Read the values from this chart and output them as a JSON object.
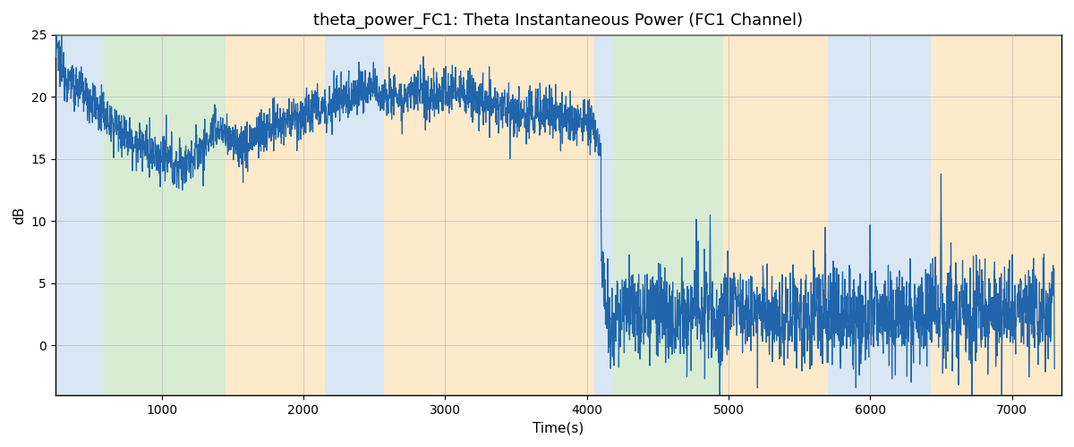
{
  "title": "theta_power_FC1: Theta Instantaneous Power (FC1 Channel)",
  "xlabel": "Time(s)",
  "ylabel": "dB",
  "ylim": [
    -4,
    25
  ],
  "xlim": [
    250,
    7350
  ],
  "xticks": [
    1000,
    2000,
    3000,
    4000,
    5000,
    6000,
    7000
  ],
  "yticks": [
    0,
    5,
    10,
    15,
    20,
    25
  ],
  "figsize": [
    12,
    5
  ],
  "dpi": 100,
  "background_color": "#ffffff",
  "line_color": "#2166ac",
  "line_width": 0.9,
  "grid_color": "#b0b0b0",
  "bands": [
    {
      "xmin": 250,
      "xmax": 590,
      "color": "#b8d4ea",
      "alpha": 0.55
    },
    {
      "xmin": 590,
      "xmax": 1450,
      "color": "#b8ddb0",
      "alpha": 0.55
    },
    {
      "xmin": 1450,
      "xmax": 2150,
      "color": "#fdd9a0",
      "alpha": 0.55
    },
    {
      "xmin": 2150,
      "xmax": 2570,
      "color": "#b8d4ea",
      "alpha": 0.55
    },
    {
      "xmin": 2570,
      "xmax": 4050,
      "color": "#fdd9a0",
      "alpha": 0.55
    },
    {
      "xmin": 4050,
      "xmax": 4190,
      "color": "#b8d4ea",
      "alpha": 0.55
    },
    {
      "xmin": 4190,
      "xmax": 4960,
      "color": "#b8ddb0",
      "alpha": 0.55
    },
    {
      "xmin": 4960,
      "xmax": 5700,
      "color": "#fdd9a0",
      "alpha": 0.55
    },
    {
      "xmin": 5700,
      "xmax": 6430,
      "color": "#b8d4ea",
      "alpha": 0.55
    },
    {
      "xmin": 6430,
      "xmax": 7350,
      "color": "#fdd9a0",
      "alpha": 0.55
    }
  ],
  "seed": 12345,
  "trend1": [
    [
      250,
      24.2
    ],
    [
      300,
      22.0
    ],
    [
      380,
      21.0
    ],
    [
      450,
      20.5
    ],
    [
      520,
      19.5
    ],
    [
      600,
      18.5
    ],
    [
      700,
      17.5
    ],
    [
      800,
      16.5
    ],
    [
      900,
      15.5
    ],
    [
      1000,
      15.0
    ],
    [
      1100,
      14.5
    ],
    [
      1200,
      14.8
    ],
    [
      1300,
      16.0
    ],
    [
      1350,
      17.0
    ],
    [
      1400,
      17.5
    ],
    [
      1500,
      16.5
    ],
    [
      1600,
      16.0
    ],
    [
      1700,
      17.0
    ],
    [
      1800,
      17.5
    ],
    [
      1900,
      18.0
    ],
    [
      2000,
      18.5
    ],
    [
      2100,
      19.0
    ],
    [
      2150,
      19.0
    ],
    [
      2200,
      19.5
    ],
    [
      2300,
      20.0
    ],
    [
      2400,
      20.5
    ],
    [
      2500,
      20.5
    ],
    [
      2600,
      20.5
    ],
    [
      2700,
      20.0
    ],
    [
      2800,
      20.0
    ],
    [
      2900,
      20.0
    ],
    [
      3000,
      20.5
    ],
    [
      3100,
      20.5
    ],
    [
      3200,
      20.0
    ],
    [
      3300,
      19.5
    ],
    [
      3400,
      19.0
    ],
    [
      3500,
      18.5
    ],
    [
      3600,
      18.5
    ],
    [
      3700,
      19.0
    ],
    [
      3800,
      18.5
    ],
    [
      3900,
      18.0
    ],
    [
      4000,
      18.0
    ],
    [
      4050,
      17.5
    ],
    [
      4100,
      15.5
    ]
  ],
  "noise1_scale": 1.3,
  "trend2": [
    [
      4100,
      9.0
    ],
    [
      4120,
      4.5
    ],
    [
      4150,
      1.5
    ],
    [
      4200,
      2.0
    ],
    [
      4300,
      2.5
    ],
    [
      4400,
      2.5
    ],
    [
      4500,
      2.5
    ],
    [
      4600,
      2.5
    ],
    [
      4700,
      2.5
    ],
    [
      4800,
      2.5
    ],
    [
      4900,
      2.5
    ],
    [
      5000,
      2.5
    ],
    [
      5100,
      2.5
    ],
    [
      5200,
      2.5
    ],
    [
      5300,
      2.5
    ],
    [
      5400,
      2.5
    ],
    [
      5500,
      2.5
    ],
    [
      5600,
      2.5
    ],
    [
      5700,
      2.5
    ],
    [
      5800,
      2.5
    ],
    [
      5900,
      2.5
    ],
    [
      6000,
      2.5
    ],
    [
      6100,
      2.5
    ],
    [
      6200,
      2.5
    ],
    [
      6300,
      2.5
    ],
    [
      6400,
      2.5
    ],
    [
      6500,
      2.5
    ],
    [
      6600,
      2.5
    ],
    [
      6700,
      2.5
    ],
    [
      6800,
      2.5
    ],
    [
      6900,
      2.5
    ],
    [
      7000,
      2.5
    ],
    [
      7100,
      2.5
    ],
    [
      7200,
      2.5
    ],
    [
      7300,
      2.5
    ]
  ],
  "noise2_scale": 2.8,
  "spikes2": [
    [
      4870,
      10.5
    ],
    [
      5680,
      9.5
    ],
    [
      6500,
      13.8
    ],
    [
      6000,
      9.7
    ]
  ]
}
